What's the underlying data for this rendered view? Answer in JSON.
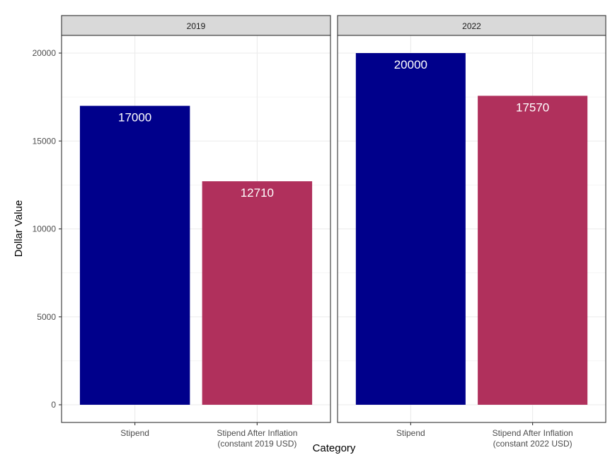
{
  "chart_data": {
    "type": "bar",
    "xlabel": "Category",
    "ylabel": "Dollar Value",
    "ylim": [
      0,
      20000
    ],
    "yticks": [
      "0",
      "5000",
      "10000",
      "15000",
      "20000"
    ],
    "grid": true,
    "legend": "none",
    "categories": [
      {
        "line1": "Stipend",
        "line2": ""
      },
      {
        "line1": "Stipend After Inflation",
        "line2": "(constant 2019 USD)"
      }
    ],
    "panels": [
      {
        "facet": "2019",
        "categories": [
          {
            "line1": "Stipend",
            "line2": ""
          },
          {
            "line1": "Stipend After Inflation",
            "line2": "(constant 2019 USD)"
          }
        ],
        "values": [
          17000,
          12710
        ],
        "labels": [
          "17000",
          "12710"
        ],
        "colors": [
          "#00008B",
          "#B0305C"
        ]
      },
      {
        "facet": "2022",
        "categories": [
          {
            "line1": "Stipend",
            "line2": ""
          },
          {
            "line1": "Stipend After Inflation",
            "line2": "(constant 2022 USD)"
          }
        ],
        "values": [
          20000,
          17570
        ],
        "labels": [
          "20000",
          "17570"
        ],
        "colors": [
          "#00008B",
          "#B0305C"
        ]
      }
    ]
  }
}
